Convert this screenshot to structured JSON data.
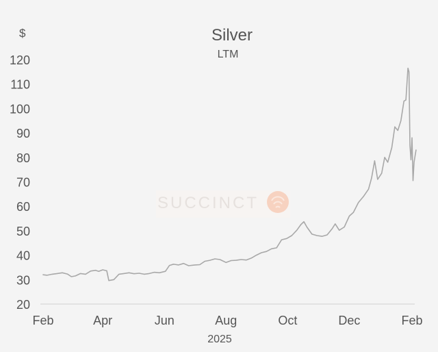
{
  "chart_data": {
    "type": "line",
    "title": "Silver",
    "subtitle": "LTM",
    "ylabel": "$",
    "xlabel": "2025",
    "ylim": [
      20,
      120
    ],
    "yticks": [
      20,
      30,
      40,
      50,
      60,
      70,
      80,
      90,
      100,
      110,
      120
    ],
    "xlim": [
      "2025-02-01",
      "2026-02-01"
    ],
    "xticks": [
      {
        "date": "2025-02-01",
        "label": "Feb"
      },
      {
        "date": "2025-04-01",
        "label": "Apr"
      },
      {
        "date": "2025-06-01",
        "label": "Jun"
      },
      {
        "date": "2025-08-01",
        "label": "Aug"
      },
      {
        "date": "2025-10-01",
        "label": "Oct"
      },
      {
        "date": "2025-12-01",
        "label": "Dec"
      },
      {
        "date": "2026-02-01",
        "label": "Feb"
      }
    ],
    "grid": false,
    "line_color": "#a8a8a8",
    "series": [
      {
        "values": [
          [
            "2025-02-01",
            32.0
          ],
          [
            "2025-02-05",
            31.8
          ],
          [
            "2025-02-10",
            32.2
          ],
          [
            "2025-02-15",
            32.5
          ],
          [
            "2025-02-20",
            32.8
          ],
          [
            "2025-02-25",
            32.3
          ],
          [
            "2025-03-01",
            31.2
          ],
          [
            "2025-03-05",
            31.5
          ],
          [
            "2025-03-10",
            32.5
          ],
          [
            "2025-03-15",
            32.2
          ],
          [
            "2025-03-20",
            33.5
          ],
          [
            "2025-03-25",
            33.8
          ],
          [
            "2025-03-28",
            33.4
          ],
          [
            "2025-04-01",
            34.0
          ],
          [
            "2025-04-05",
            33.6
          ],
          [
            "2025-04-07",
            29.6
          ],
          [
            "2025-04-12",
            30.0
          ],
          [
            "2025-04-17",
            32.2
          ],
          [
            "2025-04-22",
            32.5
          ],
          [
            "2025-04-27",
            32.8
          ],
          [
            "2025-05-02",
            32.4
          ],
          [
            "2025-05-07",
            32.6
          ],
          [
            "2025-05-12",
            32.2
          ],
          [
            "2025-05-17",
            32.5
          ],
          [
            "2025-05-22",
            33.0
          ],
          [
            "2025-05-27",
            32.8
          ],
          [
            "2025-06-02",
            33.4
          ],
          [
            "2025-06-06",
            35.8
          ],
          [
            "2025-06-10",
            36.3
          ],
          [
            "2025-06-15",
            36.0
          ],
          [
            "2025-06-20",
            36.6
          ],
          [
            "2025-06-25",
            35.7
          ],
          [
            "2025-07-01",
            36.0
          ],
          [
            "2025-07-06",
            36.1
          ],
          [
            "2025-07-11",
            37.5
          ],
          [
            "2025-07-16",
            37.9
          ],
          [
            "2025-07-21",
            38.5
          ],
          [
            "2025-07-26",
            38.2
          ],
          [
            "2025-08-01",
            37.0
          ],
          [
            "2025-08-06",
            37.8
          ],
          [
            "2025-08-11",
            37.9
          ],
          [
            "2025-08-16",
            38.2
          ],
          [
            "2025-08-21",
            38.0
          ],
          [
            "2025-08-26",
            38.8
          ],
          [
            "2025-08-31",
            40.0
          ],
          [
            "2025-09-05",
            41.0
          ],
          [
            "2025-09-10",
            41.5
          ],
          [
            "2025-09-15",
            42.6
          ],
          [
            "2025-09-20",
            43.0
          ],
          [
            "2025-09-25",
            46.3
          ],
          [
            "2025-09-30",
            46.8
          ],
          [
            "2025-10-05",
            48.0
          ],
          [
            "2025-10-10",
            50.2
          ],
          [
            "2025-10-14",
            52.5
          ],
          [
            "2025-10-17",
            53.7
          ],
          [
            "2025-10-20",
            51.5
          ],
          [
            "2025-10-25",
            48.6
          ],
          [
            "2025-10-30",
            48.0
          ],
          [
            "2025-11-04",
            47.7
          ],
          [
            "2025-11-09",
            48.3
          ],
          [
            "2025-11-14",
            50.8
          ],
          [
            "2025-11-17",
            52.8
          ],
          [
            "2025-11-21",
            50.2
          ],
          [
            "2025-11-26",
            51.5
          ],
          [
            "2025-12-01",
            56.0
          ],
          [
            "2025-12-05",
            57.5
          ],
          [
            "2025-12-10",
            61.5
          ],
          [
            "2025-12-15",
            64.0
          ],
          [
            "2025-12-20",
            67.0
          ],
          [
            "2025-12-23",
            71.5
          ],
          [
            "2025-12-26",
            78.6
          ],
          [
            "2025-12-29",
            71.0
          ],
          [
            "2026-01-02",
            73.5
          ],
          [
            "2026-01-05",
            80.0
          ],
          [
            "2026-01-08",
            78.0
          ],
          [
            "2026-01-12",
            84.0
          ],
          [
            "2026-01-15",
            92.5
          ],
          [
            "2026-01-18",
            91.0
          ],
          [
            "2026-01-21",
            95.0
          ],
          [
            "2026-01-24",
            103.0
          ],
          [
            "2026-01-26",
            103.5
          ],
          [
            "2026-01-28",
            116.5
          ],
          [
            "2026-01-29",
            115.0
          ],
          [
            "2026-01-30",
            85.0
          ],
          [
            "2026-01-31",
            79.0
          ],
          [
            "2026-02-01",
            88.0
          ],
          [
            "2026-02-02",
            70.5
          ],
          [
            "2026-02-03",
            78.0
          ],
          [
            "2026-02-05",
            83.0
          ]
        ]
      }
    ]
  },
  "watermark": {
    "text": "SUCCINCT",
    "color": "#f5c9b3"
  }
}
